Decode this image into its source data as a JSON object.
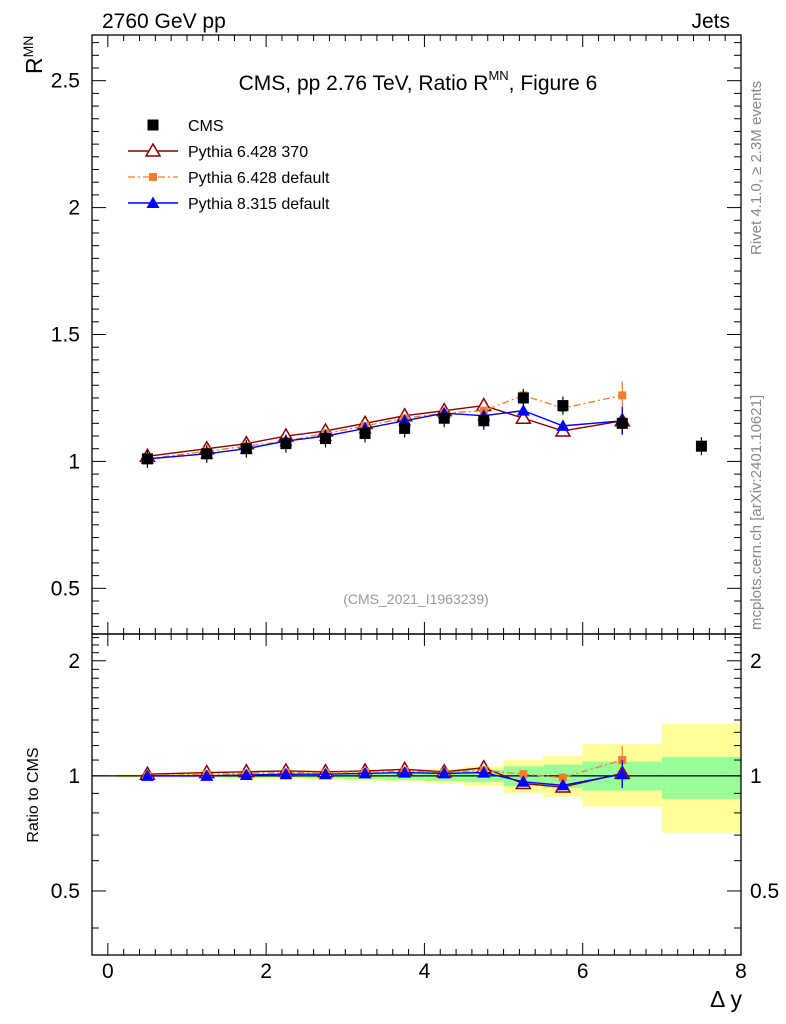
{
  "header": {
    "left": "2760 GeV pp",
    "right": "Jets"
  },
  "side_texts": {
    "rivet": "Rivet 4.1.0, ≥ 2.3M events",
    "mcplots": "mcplots.cern.ch [arXiv:2401.10621]"
  },
  "colors": {
    "cms": "#000000",
    "p6_370": "#8b0000",
    "p6_default": "#f47c2c",
    "p8_default": "#0000ff",
    "band_inner": "#99ff99",
    "band_outer": "#ffff99"
  },
  "chart_data": [
    {
      "type": "line",
      "title": "CMS, pp 2.76 TeV, Ratio R",
      "title_sup": "MN",
      "title_suffix": ", Figure 6",
      "ylabel": "R",
      "ylabel_sup": "MN",
      "xlim": [
        -0.2,
        8.0
      ],
      "ylim": [
        0.32,
        2.68
      ],
      "yticks": [
        0.5,
        1,
        1.5,
        2,
        2.5
      ],
      "ytick_labels": [
        "0.5",
        "1",
        "1.5",
        "2",
        "2.5"
      ],
      "watermark": "(CMS_2021_I1963239)",
      "legend": [
        "CMS",
        "Pythia 6.428 370",
        "Pythia 6.428 default",
        "Pythia 8.315 default"
      ],
      "series": [
        {
          "name": "CMS",
          "x": [
            0.5,
            1.25,
            1.75,
            2.25,
            2.75,
            3.25,
            3.75,
            4.25,
            4.75,
            5.25,
            5.75,
            6.5,
            7.5
          ],
          "values": [
            1.01,
            1.03,
            1.05,
            1.07,
            1.09,
            1.11,
            1.13,
            1.17,
            1.16,
            1.25,
            1.22,
            1.15,
            1.06
          ]
        },
        {
          "name": "Pythia 6.428 370",
          "x": [
            0.5,
            1.25,
            1.75,
            2.25,
            2.75,
            3.25,
            3.75,
            4.25,
            4.75,
            5.25,
            5.75,
            6.5
          ],
          "values": [
            1.02,
            1.05,
            1.07,
            1.1,
            1.12,
            1.15,
            1.18,
            1.2,
            1.22,
            1.17,
            1.12,
            1.16
          ]
        },
        {
          "name": "Pythia 6.428 default",
          "x": [
            0.5,
            1.25,
            1.75,
            2.25,
            2.75,
            3.25,
            3.75,
            4.25,
            4.75,
            5.25,
            5.75,
            6.5
          ],
          "values": [
            1.01,
            1.04,
            1.06,
            1.08,
            1.11,
            1.14,
            1.17,
            1.19,
            1.2,
            1.26,
            1.21,
            1.26
          ]
        },
        {
          "name": "Pythia 8.315 default",
          "x": [
            0.5,
            1.25,
            1.75,
            2.25,
            2.75,
            3.25,
            3.75,
            4.25,
            4.75,
            5.25,
            5.75,
            6.5
          ],
          "values": [
            1.01,
            1.03,
            1.05,
            1.08,
            1.1,
            1.13,
            1.16,
            1.19,
            1.18,
            1.2,
            1.14,
            1.16
          ]
        }
      ]
    },
    {
      "type": "line",
      "ylabel": "Ratio to CMS",
      "xlabel": "Δ y",
      "xlim": [
        -0.2,
        8.0
      ],
      "ylim": [
        0.34,
        2.35
      ],
      "yscale": "log",
      "yticks": [
        0.5,
        1,
        2
      ],
      "ytick_labels": [
        "0.5",
        "1",
        "2"
      ],
      "xticks": [
        0,
        2,
        4,
        6,
        8
      ],
      "xtick_labels": [
        "0",
        "2",
        "4",
        "6",
        "8"
      ],
      "bands": [
        {
          "x0": 0.1,
          "x1": 0.9,
          "inner": [
            0.995,
            1.005
          ],
          "outer": [
            0.99,
            1.01
          ]
        },
        {
          "x0": 0.9,
          "x1": 1.5,
          "inner": [
            0.993,
            1.007
          ],
          "outer": [
            0.985,
            1.015
          ]
        },
        {
          "x0": 1.5,
          "x1": 2.0,
          "inner": [
            0.99,
            1.01
          ],
          "outer": [
            0.98,
            1.02
          ]
        },
        {
          "x0": 2.0,
          "x1": 2.5,
          "inner": [
            0.99,
            1.01
          ],
          "outer": [
            0.98,
            1.02
          ]
        },
        {
          "x0": 2.5,
          "x1": 3.0,
          "inner": [
            0.985,
            1.015
          ],
          "outer": [
            0.975,
            1.025
          ]
        },
        {
          "x0": 3.0,
          "x1": 3.5,
          "inner": [
            0.98,
            1.02
          ],
          "outer": [
            0.97,
            1.03
          ]
        },
        {
          "x0": 3.5,
          "x1": 4.0,
          "inner": [
            0.975,
            1.025
          ],
          "outer": [
            0.965,
            1.035
          ]
        },
        {
          "x0": 4.0,
          "x1": 4.5,
          "inner": [
            0.97,
            1.03
          ],
          "outer": [
            0.955,
            1.045
          ]
        },
        {
          "x0": 4.5,
          "x1": 5.0,
          "inner": [
            0.965,
            1.035
          ],
          "outer": [
            0.94,
            1.06
          ]
        },
        {
          "x0": 5.0,
          "x1": 5.5,
          "inner": [
            0.94,
            1.06
          ],
          "outer": [
            0.9,
            1.1
          ]
        },
        {
          "x0": 5.5,
          "x1": 6.0,
          "inner": [
            0.93,
            1.07
          ],
          "outer": [
            0.88,
            1.13
          ]
        },
        {
          "x0": 6.0,
          "x1": 7.0,
          "inner": [
            0.915,
            1.09
          ],
          "outer": [
            0.83,
            1.21
          ]
        },
        {
          "x0": 7.0,
          "x1": 8.0,
          "inner": [
            0.87,
            1.12
          ],
          "outer": [
            0.71,
            1.37
          ]
        }
      ],
      "series": [
        {
          "name": "Pythia 6.428 370",
          "x": [
            0.5,
            1.25,
            1.75,
            2.25,
            2.75,
            3.25,
            3.75,
            4.25,
            4.75,
            5.25,
            5.75,
            6.5
          ],
          "values": [
            1.01,
            1.02,
            1.025,
            1.03,
            1.025,
            1.03,
            1.04,
            1.025,
            1.05,
            0.955,
            0.935,
            1.015
          ]
        },
        {
          "name": "Pythia 6.428 default",
          "x": [
            0.5,
            1.25,
            1.75,
            2.25,
            2.75,
            3.25,
            3.75,
            4.25,
            4.75,
            5.25,
            5.75,
            6.5
          ],
          "values": [
            1.0,
            1.01,
            1.015,
            1.02,
            1.02,
            1.025,
            1.03,
            1.02,
            1.035,
            1.01,
            0.99,
            1.1
          ]
        },
        {
          "name": "Pythia 8.315 default",
          "x": [
            0.5,
            1.25,
            1.75,
            2.25,
            2.75,
            3.25,
            3.75,
            4.25,
            4.75,
            5.25,
            5.75,
            6.5
          ],
          "values": [
            1.0,
            1.0,
            1.005,
            1.01,
            1.01,
            1.015,
            1.02,
            1.015,
            1.02,
            0.965,
            0.945,
            1.01
          ]
        }
      ]
    }
  ]
}
